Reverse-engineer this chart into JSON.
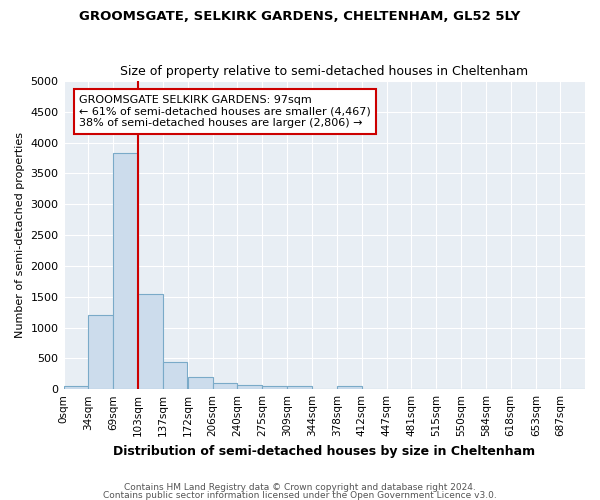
{
  "title": "GROOMSGATE, SELKIRK GARDENS, CHELTENHAM, GL52 5LY",
  "subtitle": "Size of property relative to semi-detached houses in Cheltenham",
  "xlabel": "Distribution of semi-detached houses by size in Cheltenham",
  "ylabel": "Number of semi-detached properties",
  "bin_labels": [
    "0sqm",
    "34sqm",
    "69sqm",
    "103sqm",
    "137sqm",
    "172sqm",
    "206sqm",
    "240sqm",
    "275sqm",
    "309sqm",
    "344sqm",
    "378sqm",
    "412sqm",
    "447sqm",
    "481sqm",
    "515sqm",
    "550sqm",
    "584sqm",
    "618sqm",
    "653sqm",
    "687sqm"
  ],
  "bin_edges": [
    0,
    34,
    69,
    103,
    137,
    172,
    206,
    240,
    275,
    309,
    344,
    378,
    412,
    447,
    481,
    515,
    550,
    584,
    618,
    653,
    687,
    721
  ],
  "bar_values": [
    50,
    1200,
    3830,
    1550,
    440,
    190,
    100,
    60,
    55,
    50,
    5,
    55,
    5,
    5,
    5,
    5,
    5,
    5,
    5,
    5,
    5
  ],
  "bar_color": "#ccdcec",
  "bar_edge_color": "#7aaac8",
  "ylim": [
    0,
    5000
  ],
  "yticks": [
    0,
    500,
    1000,
    1500,
    2000,
    2500,
    3000,
    3500,
    4000,
    4500,
    5000
  ],
  "property_size": 97,
  "property_label": "GROOMSGATE SELKIRK GARDENS: 97sqm",
  "smaller_pct": "61%",
  "smaller_count": "4,467",
  "larger_pct": "38%",
  "larger_count": "2,806",
  "vline_color": "#cc0000",
  "annotation_bg": "#ffffff",
  "annotation_edge": "#cc0000",
  "footer1": "Contains HM Land Registry data © Crown copyright and database right 2024.",
  "footer2": "Contains public sector information licensed under the Open Government Licence v3.0.",
  "bg_color": "#e8eef4"
}
